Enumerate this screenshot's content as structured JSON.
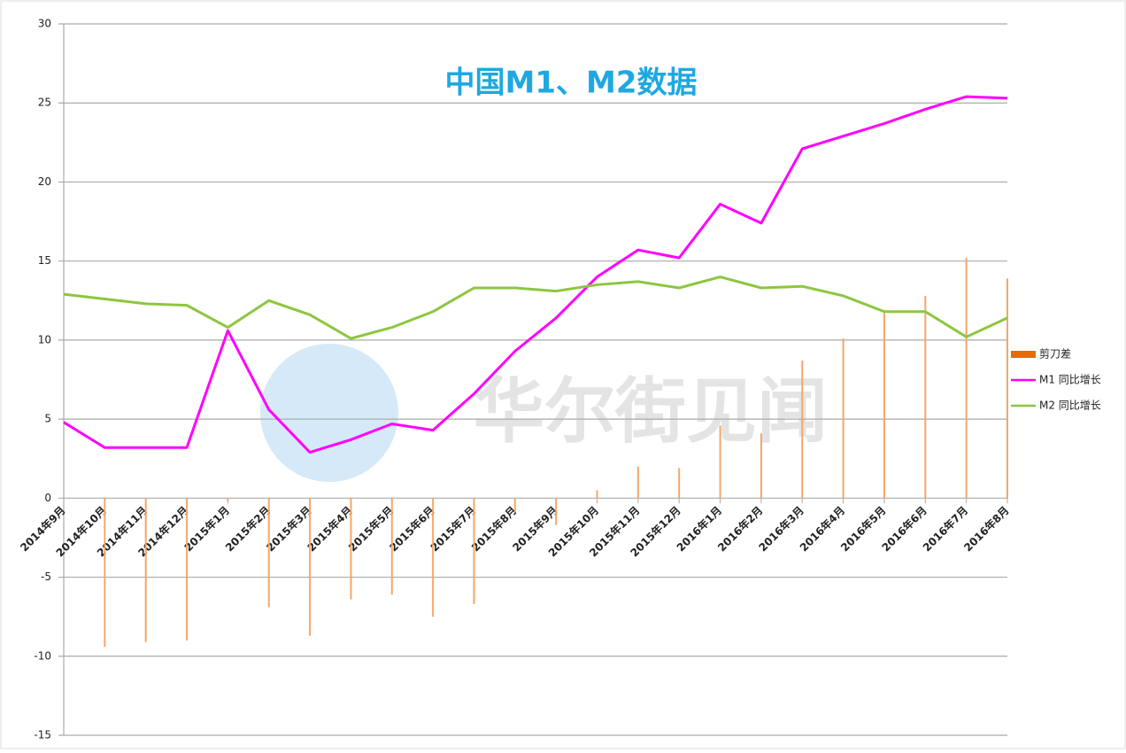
{
  "chart_data": {
    "type": "bar-line",
    "title": "中国M1、M2数据",
    "watermark": "华尔街见闻",
    "categories": [
      "2014年9月",
      "2014年10月",
      "2014年11月",
      "2014年12月",
      "2015年1月",
      "2015年2月",
      "2015年3月",
      "2015年4月",
      "2015年5月",
      "2015年6月",
      "2015年7月",
      "2015年8月",
      "2015年9月",
      "2015年10月",
      "2015年11月",
      "2015年12月",
      "2016年1月",
      "2016年2月",
      "2016年3月",
      "2016年4月",
      "2016年5月",
      "2016年6月",
      "2016年7月",
      "2016年8月"
    ],
    "series": [
      {
        "name": "剪刀差",
        "kind": "bar",
        "color": "#f4a66a",
        "legend_color": "#e36c0a",
        "values": [
          null,
          -9.4,
          -9.1,
          -9.0,
          -0.2,
          -6.9,
          -8.7,
          -6.4,
          -6.1,
          -7.5,
          -6.7,
          -0.9,
          -1.7,
          0.5,
          2.0,
          1.9,
          4.6,
          4.1,
          8.7,
          10.1,
          11.9,
          12.8,
          15.2,
          13.9
        ]
      },
      {
        "name": "M1 同比增长",
        "kind": "line",
        "color": "#ff00ff",
        "values": [
          4.8,
          3.2,
          3.2,
          3.2,
          10.6,
          5.6,
          2.9,
          3.7,
          4.7,
          4.3,
          6.6,
          9.3,
          11.4,
          14.0,
          15.7,
          15.2,
          18.6,
          17.4,
          22.1,
          22.9,
          23.7,
          24.6,
          25.4,
          25.3
        ]
      },
      {
        "name": "M2 同比增长",
        "kind": "line",
        "color": "#8dc63f",
        "values": [
          12.9,
          12.6,
          12.3,
          12.2,
          10.8,
          12.5,
          11.6,
          10.1,
          10.8,
          11.8,
          13.3,
          13.3,
          13.1,
          13.5,
          13.7,
          13.3,
          14.0,
          13.3,
          13.4,
          12.8,
          11.8,
          11.8,
          10.2,
          11.4
        ]
      }
    ],
    "ylim": [
      -15,
      30
    ],
    "yticks": [
      -15,
      -10,
      -5,
      0,
      5,
      10,
      15,
      20,
      25,
      30
    ],
    "grid": true,
    "legend": "right"
  }
}
